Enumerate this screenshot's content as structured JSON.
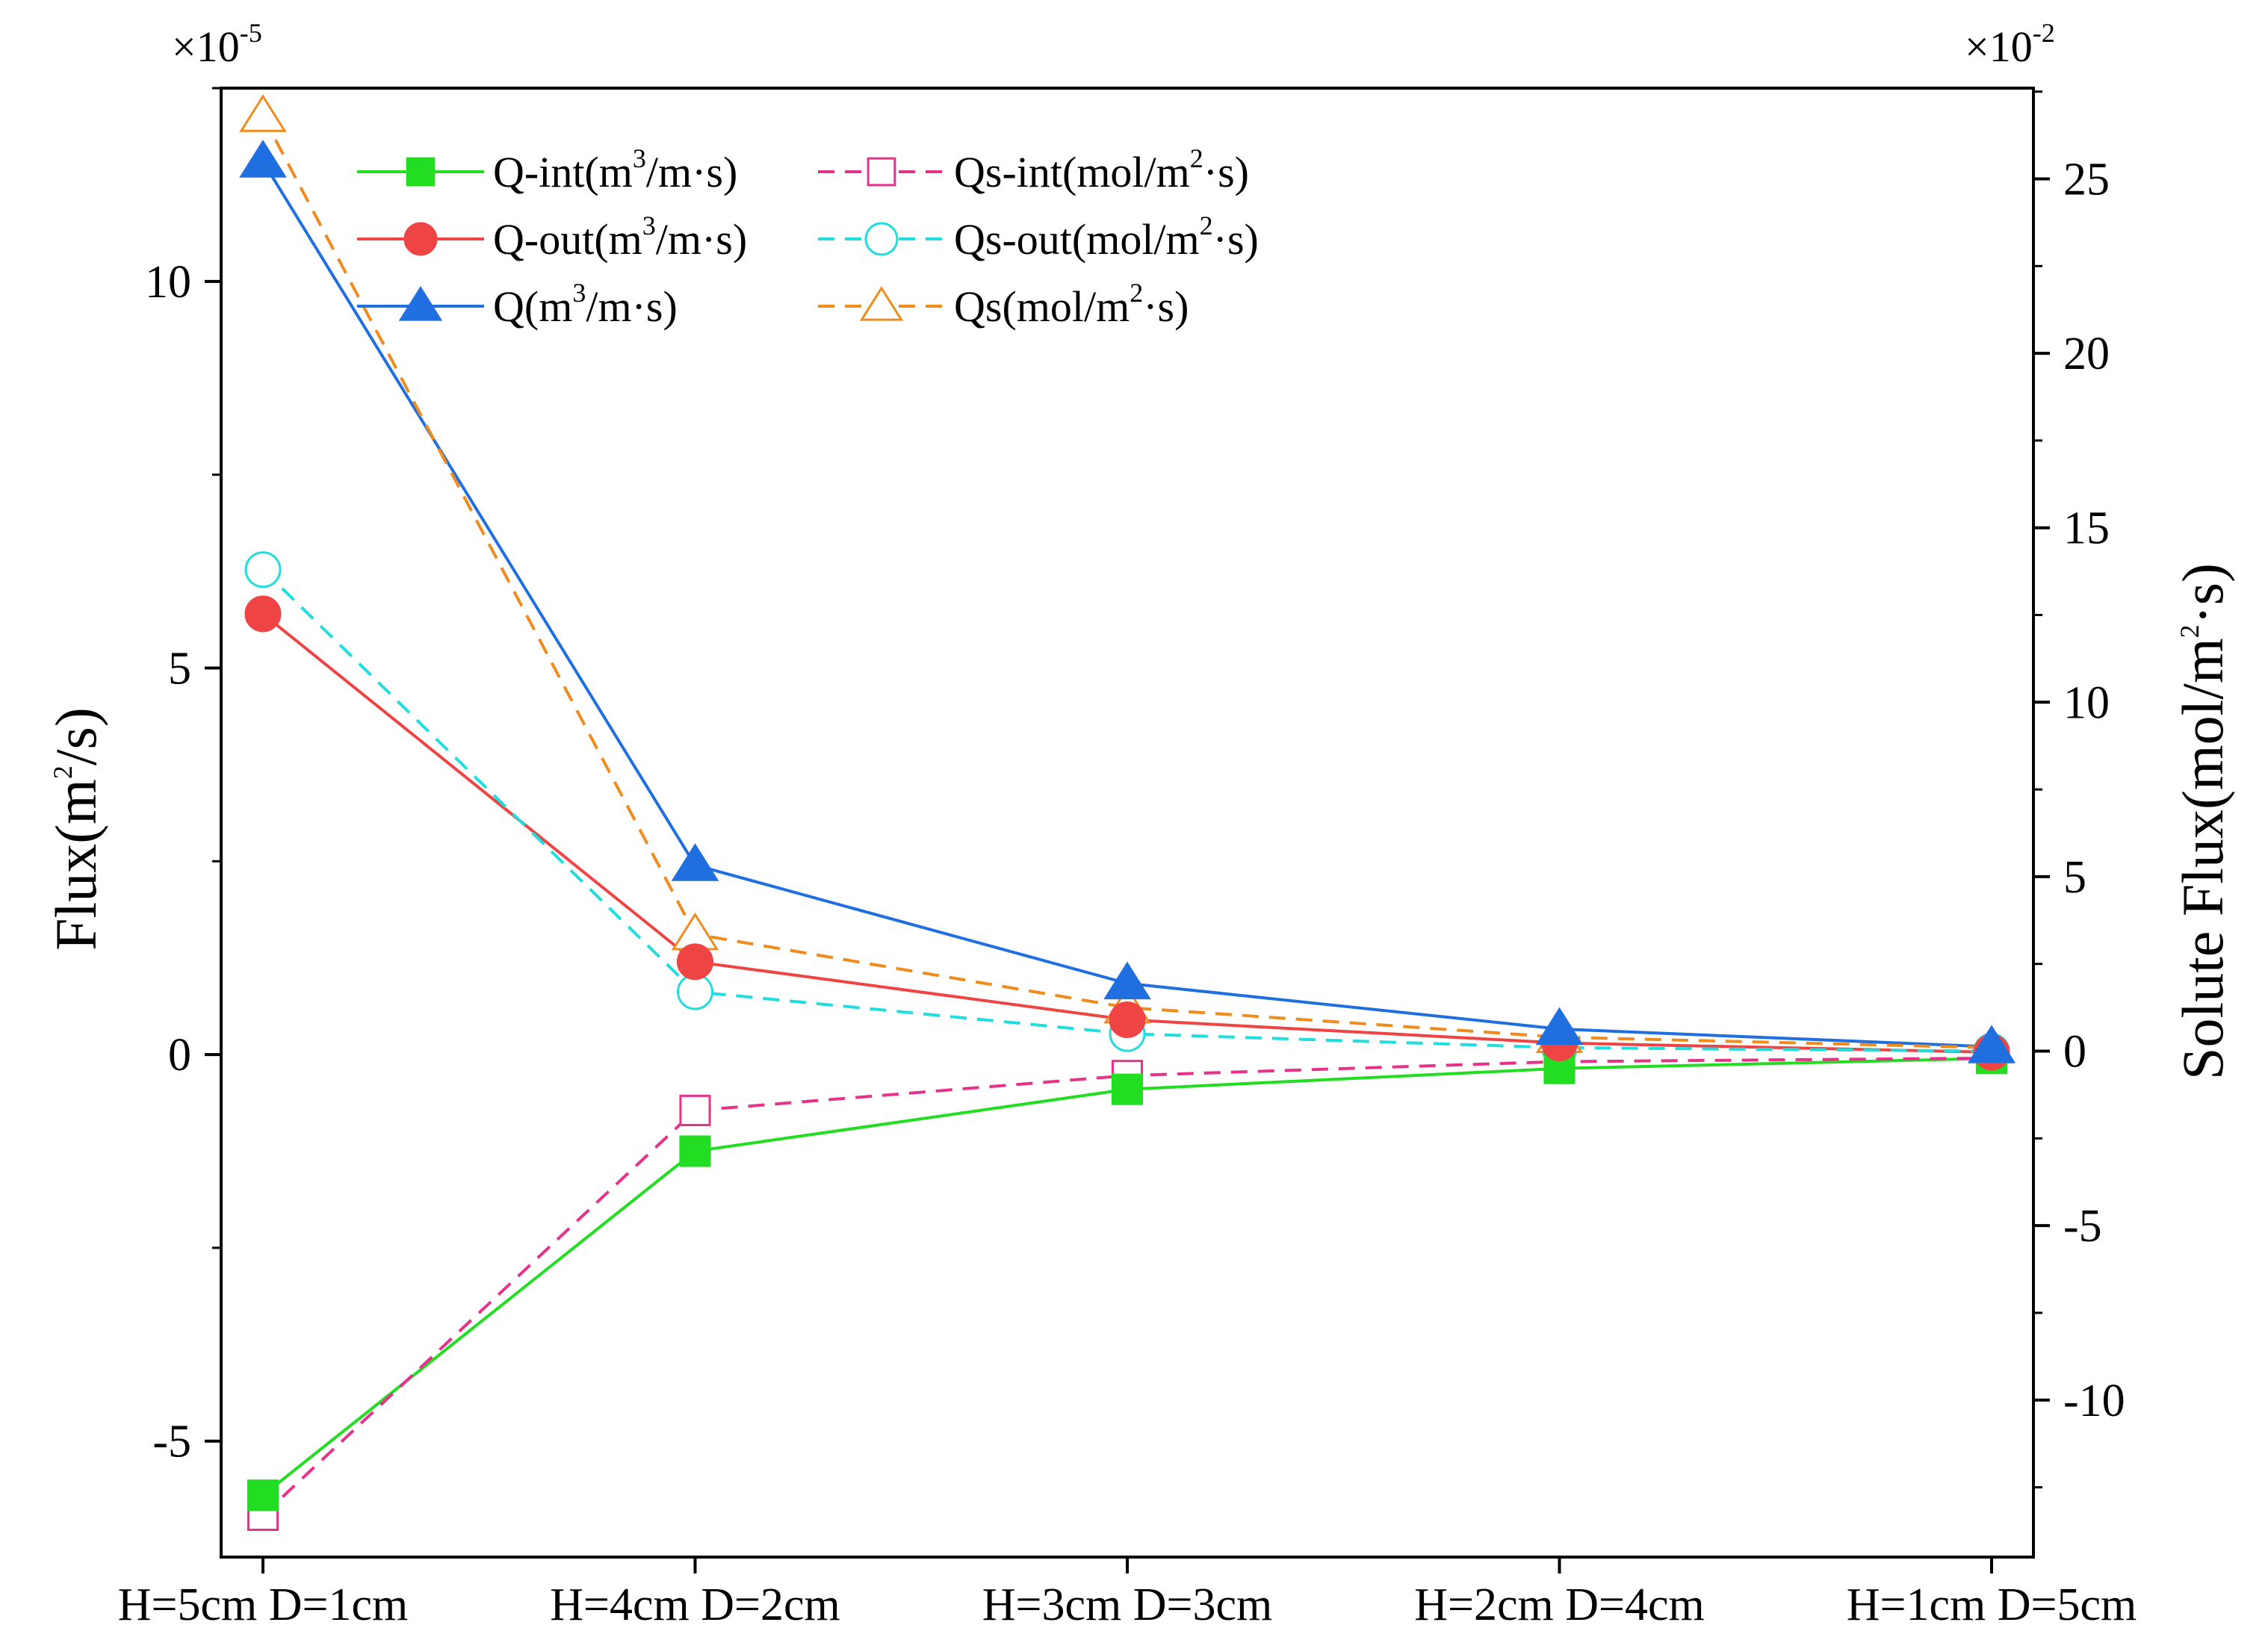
{
  "chart_data": {
    "type": "line",
    "categories": [
      "H=5cm D=1cm",
      "H=4cm D=2cm",
      "H=3cm D=3cm",
      "H=2cm D=4cm",
      "H=1cm D=5cm"
    ],
    "left_axis": {
      "title_main": "Flux(m",
      "title_sup": "2",
      "title_end": "/s)",
      "multiplier_base": "×10",
      "multiplier_exp": "-5",
      "range": [
        -6.5,
        12.5
      ],
      "ticks": [
        -5,
        0,
        5,
        10
      ],
      "tick_labels": [
        "-5",
        "0",
        "5",
        "10"
      ]
    },
    "right_axis": {
      "title_main": "Solute  Flux(mol/m",
      "title_sup": "2",
      "title_end": "·s)",
      "multiplier_base": "×10",
      "multiplier_exp": "-2",
      "range": [
        -14.5,
        27.6
      ],
      "ticks": [
        -10,
        -5,
        0,
        5,
        10,
        15,
        20,
        25
      ],
      "tick_labels": [
        "-10",
        "-5",
        "0",
        "5",
        "10",
        "15",
        "20",
        "25"
      ]
    },
    "series": [
      {
        "name": "Q-int",
        "label_a": "Q-int(m",
        "label_sup": "3",
        "label_b": "/m·s)",
        "axis": "left",
        "color": "#22dd22",
        "dash": "solid",
        "marker": "square",
        "filled": true,
        "values": [
          -5.7,
          -1.25,
          -0.45,
          -0.18,
          -0.05
        ]
      },
      {
        "name": "Q-out",
        "label_a": "Q-out(m",
        "label_sup": "3",
        "label_b": "/m·s)",
        "axis": "left",
        "color": "#ee4444",
        "dash": "solid",
        "marker": "circle",
        "filled": true,
        "values": [
          5.7,
          1.2,
          0.45,
          0.15,
          0.03
        ]
      },
      {
        "name": "Q",
        "label_a": "Q(m",
        "label_sup": "3",
        "label_b": "/m·s)",
        "axis": "left",
        "color": "#1f6fe0",
        "dash": "solid",
        "marker": "triangle",
        "filled": true,
        "values": [
          11.55,
          2.45,
          0.92,
          0.33,
          0.1
        ]
      },
      {
        "name": "Qs-int",
        "label_a": "Qs-int(mol/m",
        "label_sup": "2",
        "label_b": "·s)",
        "axis": "right",
        "color": "#e6338a",
        "dash": "dashed",
        "marker": "square",
        "filled": false,
        "values": [
          -13.3,
          -1.7,
          -0.7,
          -0.3,
          -0.2
        ]
      },
      {
        "name": "Qs-out",
        "label_a": "Qs-out(mol/m",
        "label_sup": "2",
        "label_b": "·s)",
        "axis": "right",
        "color": "#22dddd",
        "dash": "dashed",
        "marker": "circle",
        "filled": false,
        "values": [
          13.8,
          1.7,
          0.5,
          0.1,
          0.0
        ]
      },
      {
        "name": "Qs",
        "label_a": "Qs(mol/m",
        "label_sup": "2",
        "label_b": "·s)",
        "axis": "right",
        "color": "#f08c1e",
        "dash": "dashed",
        "marker": "triangle",
        "filled": false,
        "values": [
          26.8,
          3.35,
          1.25,
          0.4,
          0.1
        ]
      }
    ],
    "legend_position": "top-center",
    "grid": false
  }
}
